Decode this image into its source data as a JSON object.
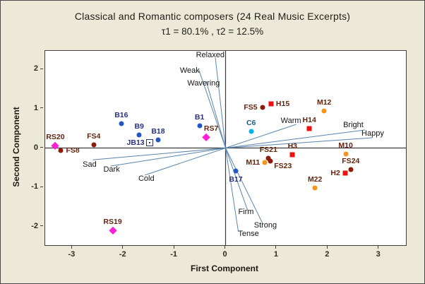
{
  "figure": {
    "title": "Classical and Romantic composers (24 Real Music Excerpts)",
    "subtitle": "τ1 = 80.1% ,  τ2 = 12.5%"
  },
  "chart_data": {
    "type": "scatter",
    "title": "Classical and Romantic composers (24 Real Music Excerpts)",
    "subtitle": "τ1 = 80.1% ,  τ2 = 12.5%",
    "xlabel": "First Component",
    "ylabel": "Second Component",
    "xlim": [
      -3.53,
      3.53
    ],
    "ylim": [
      -2.47,
      2.47
    ],
    "x_ticks": [
      -3,
      -2,
      -1,
      0,
      1,
      2,
      3
    ],
    "y_ticks": [
      2,
      1,
      0,
      -1,
      -2
    ],
    "grid": false,
    "legend": "none",
    "reference_lines": {
      "x": 0,
      "y": 0,
      "color": "#3a3a3a"
    },
    "series_styles": {
      "B": {
        "marker": "circle",
        "color": "#2457c5",
        "label_color": "#28327c"
      },
      "JB": {
        "marker": "open-square",
        "color": "#ffffff",
        "label_color": "#28327c"
      },
      "FS": {
        "marker": "circle",
        "color": "#8b1a0d",
        "label_color": "#63240f"
      },
      "RS": {
        "marker": "diamond",
        "color": "#ff1fd4",
        "label_color": "#63240f"
      },
      "H": {
        "marker": "square",
        "color": "#ee1111",
        "label_color": "#63240f"
      },
      "M": {
        "marker": "circle",
        "color": "#f7941d",
        "label_color": "#63240f"
      },
      "C": {
        "marker": "circle",
        "color": "#00b2ee",
        "label_color": "#1b5e7d"
      }
    },
    "points": [
      {
        "label": "RS20",
        "series": "RS",
        "x": -3.33,
        "y": 0.06,
        "anchor": "above"
      },
      {
        "label": "FS8",
        "series": "FS",
        "x": -3.22,
        "y": -0.06,
        "anchor": "right"
      },
      {
        "label": "FS4",
        "series": "FS",
        "x": -2.58,
        "y": 0.08,
        "anchor": "above"
      },
      {
        "label": "B16",
        "series": "B",
        "x": -2.04,
        "y": 0.62,
        "anchor": "above"
      },
      {
        "label": "B9",
        "series": "B",
        "x": -1.69,
        "y": 0.34,
        "anchor": "above"
      },
      {
        "label": "B18",
        "series": "B",
        "x": -1.32,
        "y": 0.21,
        "anchor": "above"
      },
      {
        "label": "JB13",
        "series": "JB",
        "x": -1.49,
        "y": 0.13,
        "anchor": "left"
      },
      {
        "label": "B1",
        "series": "B",
        "x": -0.51,
        "y": 0.56,
        "anchor": "above"
      },
      {
        "label": "RS7",
        "series": "RS",
        "x": -0.38,
        "y": 0.28,
        "anchor": "above-right"
      },
      {
        "label": "RS19",
        "series": "RS",
        "x": -2.21,
        "y": -2.1,
        "anchor": "above"
      },
      {
        "label": "FS5",
        "series": "FS",
        "x": 0.72,
        "y": 1.03,
        "anchor": "left"
      },
      {
        "label": "H15",
        "series": "H",
        "x": 0.89,
        "y": 1.12,
        "anchor": "right"
      },
      {
        "label": "C6",
        "series": "C",
        "x": 0.5,
        "y": 0.42,
        "anchor": "above"
      },
      {
        "label": "M12",
        "series": "M",
        "x": 1.93,
        "y": 0.95,
        "anchor": "above"
      },
      {
        "label": "H14",
        "series": "H",
        "x": 1.64,
        "y": 0.49,
        "anchor": "above"
      },
      {
        "label": "FS21",
        "series": "FS",
        "x": 0.84,
        "y": -0.26,
        "anchor": "above"
      },
      {
        "label": "M11",
        "series": "M",
        "x": 0.77,
        "y": -0.37,
        "anchor": "left"
      },
      {
        "label": "FS23",
        "series": "FS",
        "x": 0.88,
        "y": -0.34,
        "anchor": "below-right"
      },
      {
        "label": "H3",
        "series": "H",
        "x": 1.31,
        "y": -0.17,
        "anchor": "above"
      },
      {
        "label": "M10",
        "series": "M",
        "x": 2.35,
        "y": -0.16,
        "anchor": "above"
      },
      {
        "label": "FS24",
        "series": "FS",
        "x": 2.45,
        "y": -0.55,
        "anchor": "above"
      },
      {
        "label": "H2",
        "series": "H",
        "x": 2.34,
        "y": -0.64,
        "anchor": "left"
      },
      {
        "label": "M22",
        "series": "M",
        "x": 1.75,
        "y": -1.01,
        "anchor": "above"
      },
      {
        "label": "B17",
        "series": "B",
        "x": 0.2,
        "y": -0.58,
        "anchor": "below"
      }
    ],
    "vectors": {
      "color": "#5b84ad",
      "origin": {
        "x": 0,
        "y": 0
      },
      "items": [
        {
          "label": "Relaxed",
          "x": -0.2,
          "y": 2.3,
          "lx": -0.3,
          "ly": 2.36
        },
        {
          "label": "Weak",
          "x": -0.52,
          "y": 1.98,
          "lx": -0.7,
          "ly": 1.97
        },
        {
          "label": "Wavering",
          "x": -0.38,
          "y": 1.7,
          "lx": -0.43,
          "ly": 1.65
        },
        {
          "label": "Warm",
          "x": 1.38,
          "y": 0.6,
          "lx": 1.28,
          "ly": 0.7
        },
        {
          "label": "Bright",
          "x": 2.73,
          "y": 0.46,
          "lx": 2.5,
          "ly": 0.59
        },
        {
          "label": "Happy",
          "x": 2.87,
          "y": 0.26,
          "lx": 2.88,
          "ly": 0.37
        },
        {
          "label": "Sad",
          "x": -2.6,
          "y": -0.3,
          "lx": -2.66,
          "ly": -0.42
        },
        {
          "label": "Dark",
          "x": -2.25,
          "y": -0.46,
          "lx": -2.23,
          "ly": -0.54
        },
        {
          "label": "Cold",
          "x": -1.58,
          "y": -0.69,
          "lx": -1.55,
          "ly": -0.79
        },
        {
          "label": "Firm",
          "x": 0.43,
          "y": -1.58,
          "lx": 0.4,
          "ly": -1.63
        },
        {
          "label": "Strong",
          "x": 0.73,
          "y": -1.93,
          "lx": 0.78,
          "ly": -1.97
        },
        {
          "label": "Tense",
          "x": 0.25,
          "y": -2.13,
          "lx": 0.45,
          "ly": -2.19
        }
      ]
    },
    "colors": {
      "figure_background": "#ece9d8",
      "plot_background": "#ffffff",
      "plot_border": "#3f3f3f",
      "vector_line": "#5b84ad"
    }
  }
}
